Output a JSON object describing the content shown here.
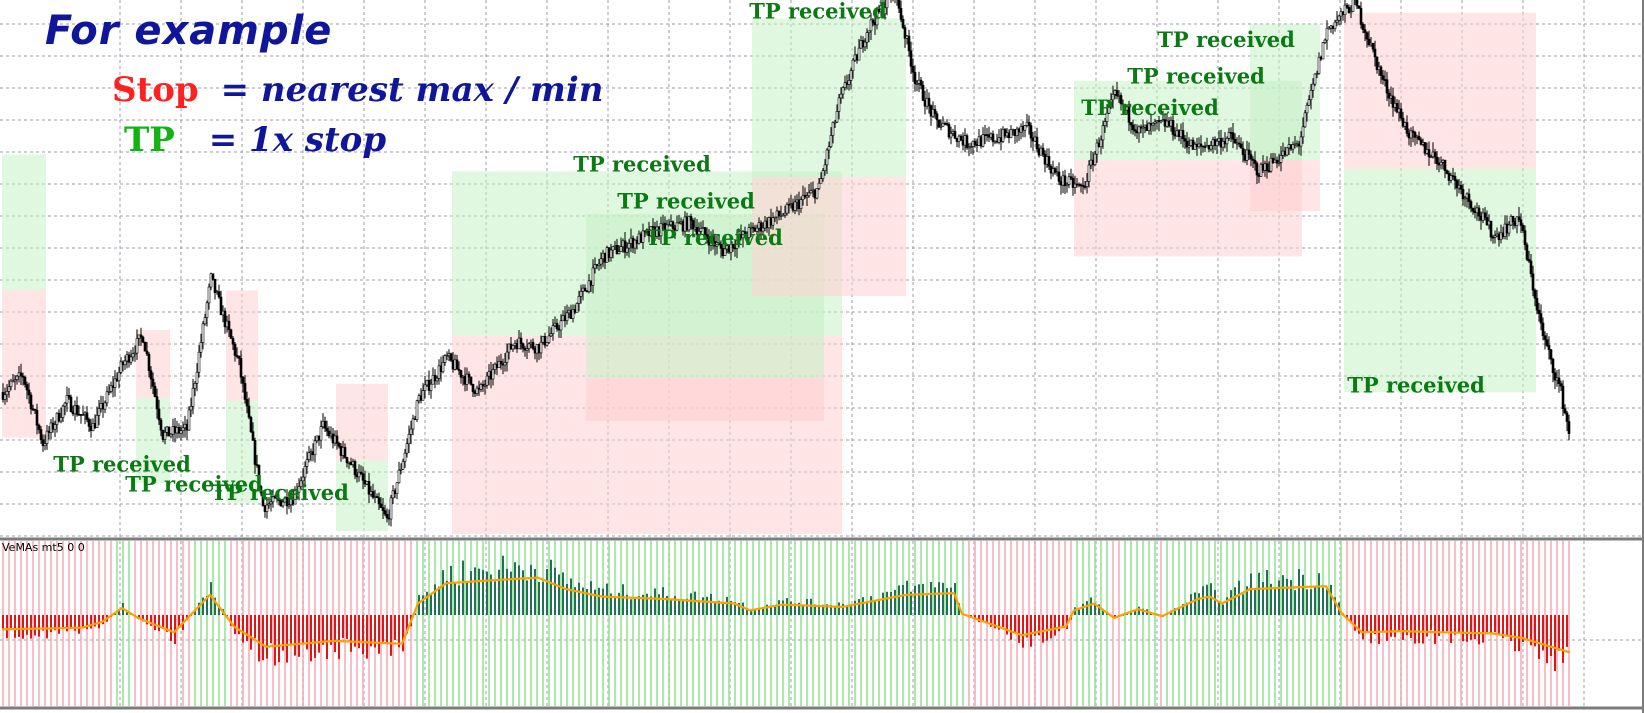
{
  "header": {
    "title": "For example",
    "stop_key": "Stop",
    "stop_text": "= nearest max / min",
    "tp_key": "TP",
    "tp_text": "= 1x stop"
  },
  "colors": {
    "stop": "#ff2020",
    "tp": "#13b313",
    "text_blue": "#10169a",
    "tp_label": "#0a7a12",
    "zone_green": "#c6f0c6",
    "zone_red": "#ffd0d0",
    "hist_green": "#22705a",
    "hist_red": "#e01515",
    "signal": "#ffa000"
  },
  "indicator": {
    "label": "VeMAs mt5 0 0"
  },
  "chart_data": {
    "type": "candlestick",
    "annotation_text": "TP received",
    "annotations": [
      {
        "x": 60,
        "y": 0.72
      },
      {
        "x": 96,
        "y": 0.65
      },
      {
        "x": 139,
        "y": 0.62
      },
      {
        "x": 320,
        "y": 1.78
      },
      {
        "x": 342,
        "y": 1.65
      },
      {
        "x": 356,
        "y": 1.52
      },
      {
        "x": 408,
        "y": 2.32
      },
      {
        "x": 574,
        "y": 1.98
      },
      {
        "x": 597,
        "y": 2.09
      },
      {
        "x": 612,
        "y": 2.22
      },
      {
        "x": 707,
        "y": 1.0
      }
    ],
    "price_path": [
      [
        0,
        1.0
      ],
      [
        10,
        1.06
      ],
      [
        20,
        0.82
      ],
      [
        32,
        0.97
      ],
      [
        45,
        0.88
      ],
      [
        60,
        1.1
      ],
      [
        70,
        1.2
      ],
      [
        80,
        0.85
      ],
      [
        92,
        0.87
      ],
      [
        104,
        1.4
      ],
      [
        118,
        1.1
      ],
      [
        130,
        0.6
      ],
      [
        145,
        0.63
      ],
      [
        160,
        0.88
      ],
      [
        174,
        0.75
      ],
      [
        192,
        0.55
      ],
      [
        208,
        0.98
      ],
      [
        222,
        1.12
      ],
      [
        238,
        1.0
      ],
      [
        256,
        1.18
      ],
      [
        268,
        1.16
      ],
      [
        286,
        1.3
      ],
      [
        300,
        1.48
      ],
      [
        326,
        1.57
      ],
      [
        344,
        1.6
      ],
      [
        360,
        1.5
      ],
      [
        372,
        1.56
      ],
      [
        392,
        1.64
      ],
      [
        408,
        1.72
      ],
      [
        418,
        2.02
      ],
      [
        432,
        2.28
      ],
      [
        446,
        2.42
      ],
      [
        456,
        2.11
      ],
      [
        466,
        1.96
      ],
      [
        482,
        1.88
      ],
      [
        498,
        1.9
      ],
      [
        512,
        1.93
      ],
      [
        528,
        1.75
      ],
      [
        540,
        1.72
      ],
      [
        556,
        2.05
      ],
      [
        568,
        1.92
      ],
      [
        582,
        1.95
      ],
      [
        596,
        1.86
      ],
      [
        614,
        1.9
      ],
      [
        628,
        1.78
      ],
      [
        648,
        1.88
      ],
      [
        662,
        2.28
      ],
      [
        676,
        2.38
      ],
      [
        690,
        2.1
      ],
      [
        704,
        1.9
      ],
      [
        718,
        1.82
      ],
      [
        734,
        1.67
      ],
      [
        746,
        1.55
      ],
      [
        758,
        1.62
      ],
      [
        770,
        1.2
      ],
      [
        779,
        1.0
      ],
      [
        783,
        0.86
      ]
    ],
    "indicator_path": [
      [
        0,
        -0.25
      ],
      [
        40,
        -0.22
      ],
      [
        50,
        -0.12
      ],
      [
        60,
        0.12
      ],
      [
        68,
        -0.05
      ],
      [
        86,
        -0.3
      ],
      [
        104,
        0.35
      ],
      [
        116,
        -0.2
      ],
      [
        132,
        -0.55
      ],
      [
        166,
        -0.45
      ],
      [
        200,
        -0.5
      ],
      [
        208,
        0.2
      ],
      [
        222,
        0.55
      ],
      [
        244,
        0.6
      ],
      [
        268,
        0.65
      ],
      [
        282,
        0.45
      ],
      [
        300,
        0.32
      ],
      [
        330,
        0.28
      ],
      [
        366,
        0.2
      ],
      [
        374,
        0.08
      ],
      [
        390,
        0.18
      ],
      [
        420,
        0.14
      ],
      [
        452,
        0.35
      ],
      [
        476,
        0.38
      ],
      [
        480,
        0.02
      ],
      [
        510,
        -0.35
      ],
      [
        532,
        -0.2
      ],
      [
        536,
        0.08
      ],
      [
        546,
        0.2
      ],
      [
        556,
        -0.05
      ],
      [
        568,
        0.1
      ],
      [
        580,
        -0.02
      ],
      [
        598,
        0.28
      ],
      [
        604,
        0.32
      ],
      [
        610,
        0.2
      ],
      [
        624,
        0.45
      ],
      [
        646,
        0.48
      ],
      [
        662,
        0.5
      ],
      [
        670,
        0.02
      ],
      [
        680,
        -0.3
      ],
      [
        700,
        -0.28
      ],
      [
        720,
        -0.3
      ],
      [
        745,
        -0.32
      ],
      [
        760,
        -0.4
      ],
      [
        784,
        -0.65
      ]
    ],
    "zones": [
      {
        "x0": 0,
        "x1": 22,
        "top": 1.84,
        "mid": 1.36,
        "bottom": 0.84,
        "tp_above": true
      },
      {
        "x0": 67,
        "x1": 84,
        "top": 1.22,
        "mid": 0.98,
        "bottom": 0.68,
        "tp_above": false
      },
      {
        "x0": 112,
        "x1": 128,
        "top": 1.36,
        "mid": 0.97,
        "bottom": 0.61,
        "tp_above": false
      },
      {
        "x0": 167,
        "x1": 193,
        "top": 1.03,
        "mid": 0.76,
        "bottom": 0.51,
        "tp_above": false
      },
      {
        "x0": 225,
        "x1": 420,
        "top": 1.78,
        "mid": 1.2,
        "bottom": 0.5,
        "tp_above": true
      },
      {
        "x0": 292,
        "x1": 411,
        "top": 1.63,
        "mid": 1.05,
        "bottom": 0.9,
        "tp_above": true
      },
      {
        "x0": 375,
        "x1": 452,
        "top": 2.32,
        "mid": 1.76,
        "bottom": 1.34,
        "tp_above": true
      },
      {
        "x0": 536,
        "x1": 650,
        "top": 2.1,
        "mid": 1.82,
        "bottom": 1.48,
        "tp_above": true
      },
      {
        "x0": 624,
        "x1": 659,
        "top": 2.3,
        "mid": 1.82,
        "bottom": 1.64,
        "tp_above": true
      },
      {
        "x0": 671,
        "x1": 767,
        "top": 2.34,
        "mid": 1.79,
        "bottom": 1.0,
        "tp_above": false
      }
    ]
  }
}
